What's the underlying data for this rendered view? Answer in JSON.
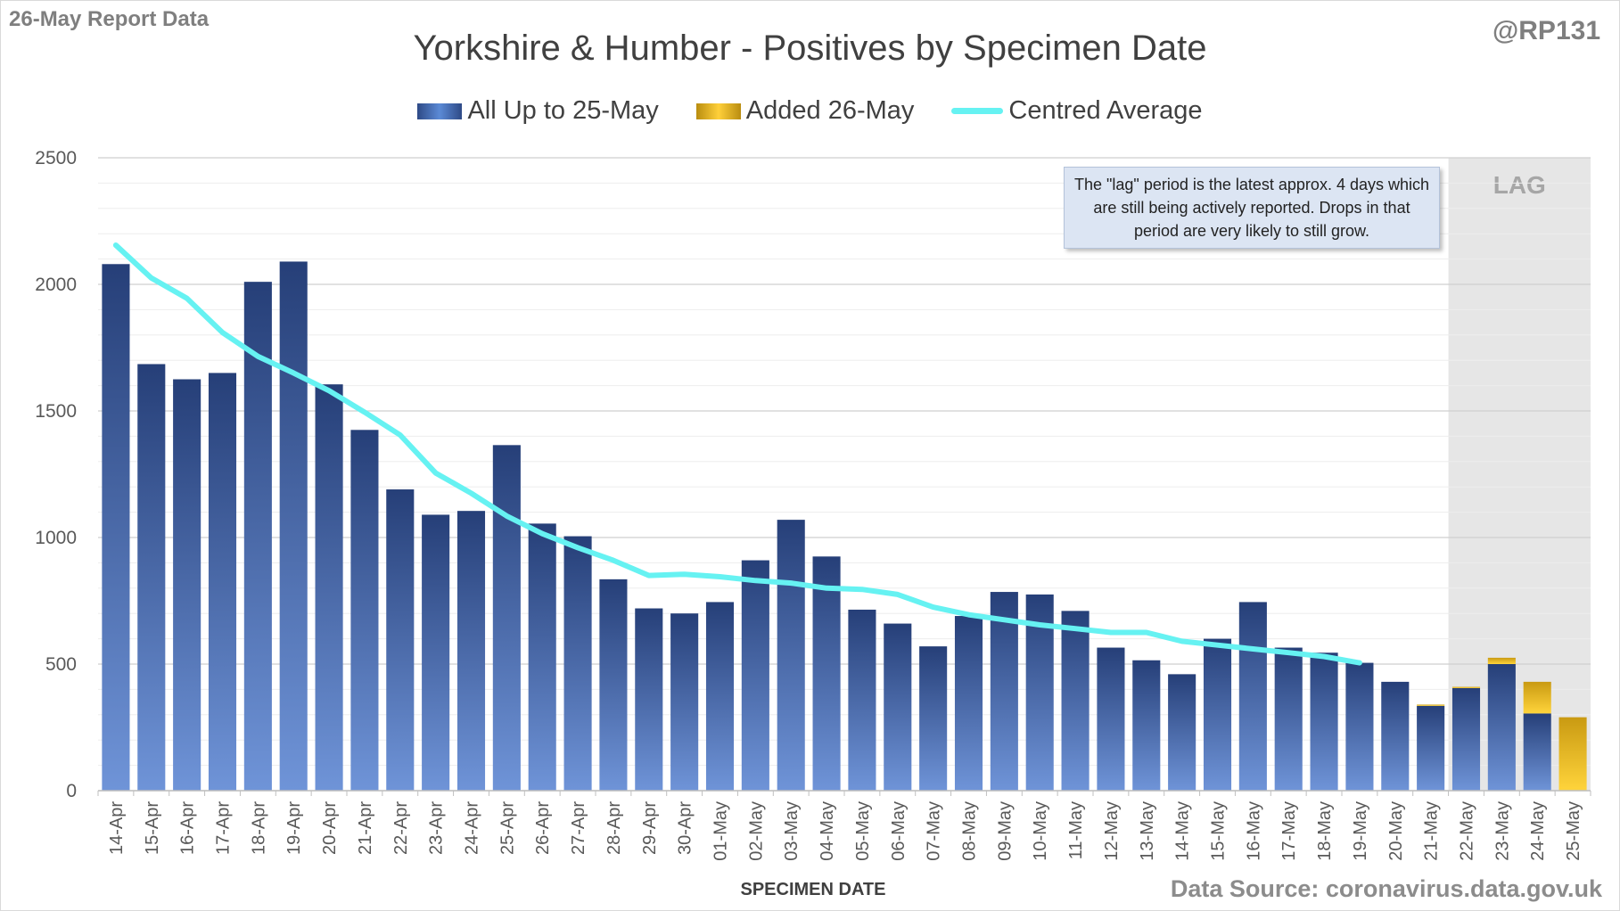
{
  "header": {
    "report_label": "26-May Report Data",
    "handle": "@RP131",
    "source": "Data Source: coronavirus.data.gov.uk"
  },
  "legend": {
    "series1": "All Up to 25-May",
    "series2": "Added 26-May",
    "series3": "Centred Average"
  },
  "note": {
    "text": "The \"lag\" period is the latest approx. 4 days which are still being actively reported.  Drops in that period are very likely to still grow."
  },
  "colors": {
    "bar_dark": "#263f78",
    "bar_light": "#6f94d8",
    "added_dark": "#c99a12",
    "added_light": "#ffd43b",
    "average_line": "#66f2f2",
    "lag_shade": "#e6e6e6"
  },
  "chart_data": {
    "type": "bar",
    "stacked": true,
    "title": "Yorkshire & Humber - Positives by Specimen Date",
    "xlabel": "SPECIMEN DATE",
    "ylabel": "",
    "ylim": [
      0,
      2500
    ],
    "yticks": [
      0,
      500,
      1000,
      1500,
      2000,
      2500
    ],
    "grid": true,
    "legend_position": "top-center",
    "lag_label": "LAG",
    "lag_categories": [
      "22-May",
      "23-May",
      "24-May",
      "25-May"
    ],
    "categories": [
      "14-Apr",
      "15-Apr",
      "16-Apr",
      "17-Apr",
      "18-Apr",
      "19-Apr",
      "20-Apr",
      "21-Apr",
      "22-Apr",
      "23-Apr",
      "24-Apr",
      "25-Apr",
      "26-Apr",
      "27-Apr",
      "28-Apr",
      "29-Apr",
      "30-Apr",
      "01-May",
      "02-May",
      "03-May",
      "04-May",
      "05-May",
      "06-May",
      "07-May",
      "08-May",
      "09-May",
      "10-May",
      "11-May",
      "12-May",
      "13-May",
      "14-May",
      "15-May",
      "16-May",
      "17-May",
      "18-May",
      "19-May",
      "20-May",
      "21-May",
      "22-May",
      "23-May",
      "24-May",
      "25-May"
    ],
    "series": [
      {
        "name": "All Up to 25-May",
        "values": [
          2080,
          1685,
          1625,
          1650,
          2010,
          2090,
          1605,
          1425,
          1190,
          1090,
          1105,
          1365,
          1055,
          1005,
          835,
          720,
          700,
          745,
          910,
          1070,
          925,
          715,
          660,
          570,
          690,
          785,
          775,
          710,
          565,
          515,
          460,
          600,
          745,
          565,
          545,
          505,
          430,
          335,
          405,
          500,
          305,
          0
        ]
      },
      {
        "name": "Added 26-May",
        "values": [
          0,
          0,
          0,
          0,
          0,
          0,
          0,
          0,
          0,
          0,
          0,
          0,
          0,
          0,
          0,
          0,
          0,
          0,
          0,
          0,
          0,
          0,
          0,
          0,
          0,
          0,
          0,
          0,
          0,
          0,
          0,
          0,
          0,
          0,
          0,
          0,
          0,
          5,
          5,
          25,
          125,
          290
        ]
      },
      {
        "name": "Centred Average",
        "type": "line",
        "values": [
          2155,
          2025,
          1945,
          1810,
          1715,
          1650,
          1580,
          1495,
          1405,
          1255,
          1175,
          1085,
          1015,
          960,
          910,
          850,
          855,
          845,
          830,
          820,
          800,
          795,
          775,
          725,
          695,
          675,
          655,
          640,
          625,
          625,
          590,
          575,
          560,
          545,
          530,
          505,
          null,
          null,
          null,
          null,
          null,
          null
        ]
      }
    ]
  }
}
